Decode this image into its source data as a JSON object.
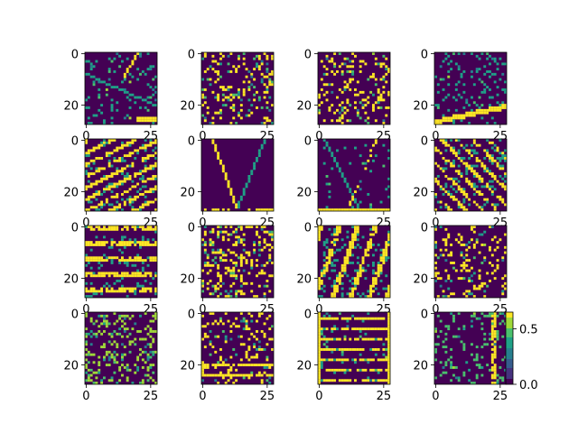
{
  "chart_data": {
    "type": "heatmap",
    "layout": "4x4 grid of image panels",
    "panel_size": [
      28,
      28
    ],
    "colormap": "viridis",
    "axis_ticks": [
      0,
      25
    ],
    "axis_tick_labels": [
      "0",
      "25"
    ],
    "y_tick_labels": [
      "0",
      "20"
    ],
    "y_ticks": [
      0,
      20
    ],
    "colorbar": {
      "attached_to_panel": 15,
      "range": [
        0.0,
        0.65
      ],
      "ticks": [
        0.0,
        0.5
      ],
      "tick_labels": [
        "0.0",
        "0.5"
      ]
    },
    "panels": [
      {
        "index": 0,
        "pattern": "diagonal-edges"
      },
      {
        "index": 1,
        "pattern": "sparse-noise"
      },
      {
        "index": 2,
        "pattern": "sparse-noise"
      },
      {
        "index": 3,
        "pattern": "bottom-diagonal-bar"
      },
      {
        "index": 4,
        "pattern": "dense-horizontal-streaks"
      },
      {
        "index": 5,
        "pattern": "dark-y-shape"
      },
      {
        "index": 6,
        "pattern": "dark-diagonal"
      },
      {
        "index": 7,
        "pattern": "diagonal-noise"
      },
      {
        "index": 8,
        "pattern": "horizontal-bands"
      },
      {
        "index": 9,
        "pattern": "textured-noise"
      },
      {
        "index": 10,
        "pattern": "bright-diagonal-stripes"
      },
      {
        "index": 11,
        "pattern": "sparse-noise"
      },
      {
        "index": 12,
        "pattern": "mixed-noise"
      },
      {
        "index": 13,
        "pattern": "horizontal-lines-bottom"
      },
      {
        "index": 14,
        "pattern": "horizontal-bars"
      },
      {
        "index": 15,
        "pattern": "vertical-right-band"
      }
    ]
  }
}
